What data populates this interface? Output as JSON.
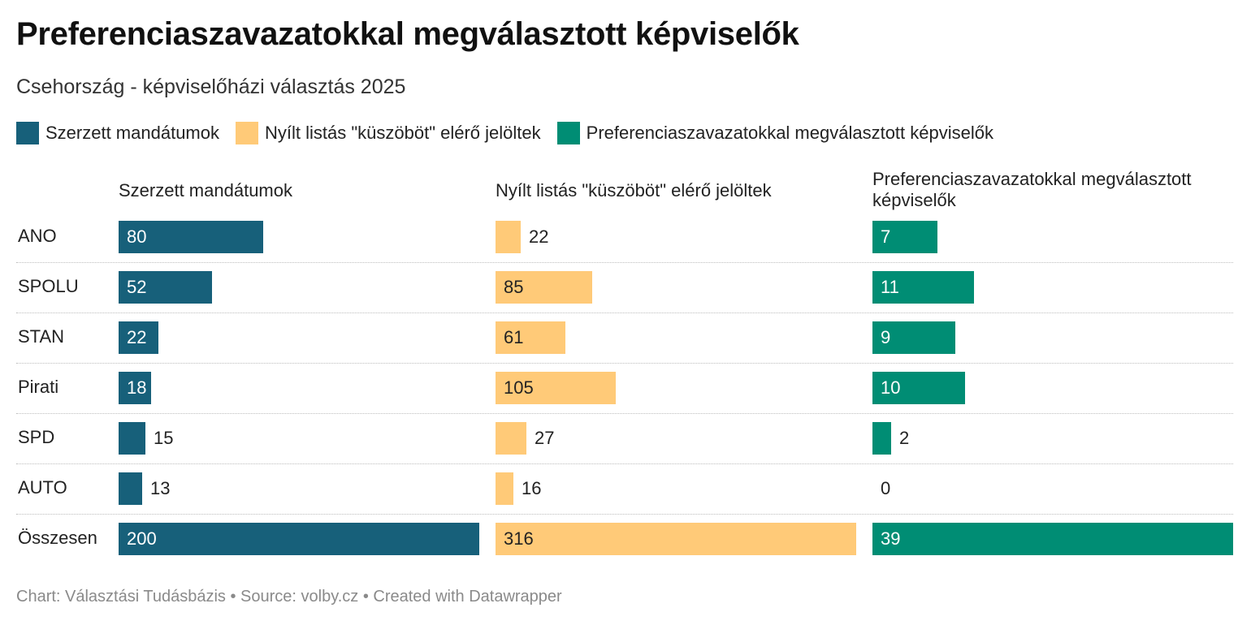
{
  "title": "Preferenciaszavazatokkal megválasztott képviselők",
  "subtitle": "Csehország - képviselőházi választás 2025",
  "footer": "Chart: Választási Tudásbázis • Source: volby.cz • Created with Datawrapper",
  "colors": {
    "mandates": "#17607a",
    "threshold": "#ffca78",
    "preferential": "#008d74"
  },
  "chart_data": {
    "type": "bar",
    "title": "Preferenciaszavazatokkal megválasztott képviselők",
    "subtitle": "Csehország - képviselőházi választás 2025",
    "legend": [
      "Szerzett mandátumok",
      "Nyílt listás \"küszöböt\" elérő jelöltek",
      "Preferenciaszavazatokkal megválasztott képviselők"
    ],
    "legend_position": "top-left",
    "categories": [
      "ANO",
      "SPOLU",
      "STAN",
      "Pirati",
      "SPD",
      "AUTO",
      "Összesen"
    ],
    "series": [
      {
        "name": "Szerzett mandátumok",
        "values": [
          80,
          52,
          22,
          18,
          15,
          13,
          200
        ],
        "max": 200
      },
      {
        "name": "Nyílt listás \"küszöböt\" elérő jelöltek",
        "values": [
          22,
          85,
          61,
          105,
          27,
          16,
          316
        ],
        "max": 316
      },
      {
        "name": "Preferenciaszavazatokkal megválasztott képviselők",
        "values": [
          7,
          11,
          9,
          10,
          2,
          0,
          39
        ],
        "max": 39
      }
    ]
  }
}
